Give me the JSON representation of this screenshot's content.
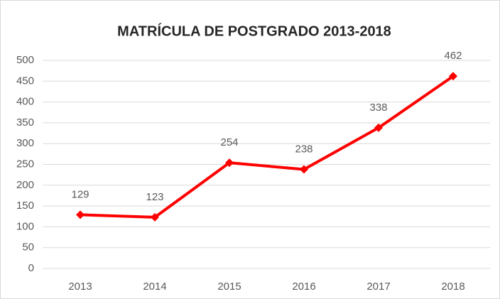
{
  "chart_data": {
    "type": "line",
    "title": "MATRÍCULA DE POSTGRADO 2013-2018",
    "categories": [
      "2013",
      "2014",
      "2015",
      "2016",
      "2017",
      "2018"
    ],
    "values": [
      129,
      123,
      254,
      238,
      338,
      462
    ],
    "color": "#ff0000",
    "ylim": [
      0,
      500
    ],
    "yticks": [
      0,
      50,
      100,
      150,
      200,
      250,
      300,
      350,
      400,
      450,
      500
    ],
    "grid": true
  }
}
